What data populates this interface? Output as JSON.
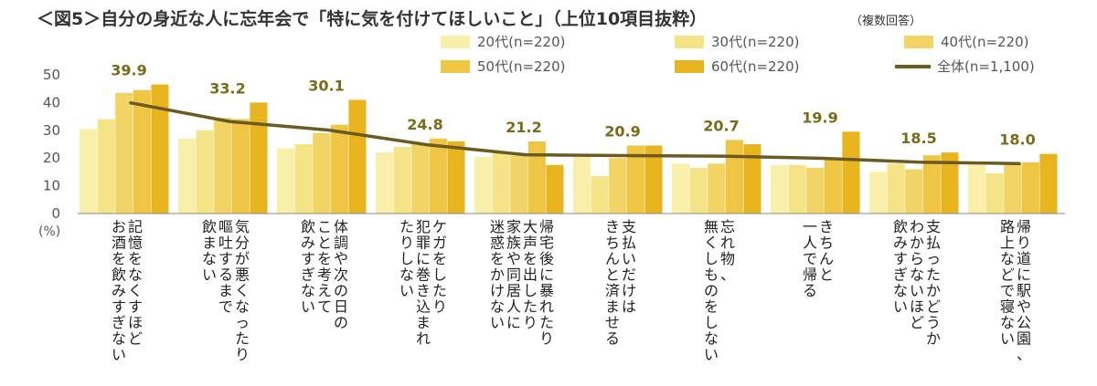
{
  "chart_data": {
    "type": "bar",
    "title": "＜図5＞自分の身近な人に忘年会で「特に気を付けてほしいこと」（上位10項目抜粋）",
    "subtitle": "（複数回答）",
    "ylabel": "(%)",
    "ylim": [
      0,
      50
    ],
    "yticks": [
      "0",
      "10",
      "20",
      "30",
      "40",
      "50"
    ],
    "grid": false,
    "legend_position": "top-right",
    "categories": [
      "記憶をなくすほどお酒を飲みすぎない",
      "気分が悪くなったり嘔吐するまで飲まない",
      "体調や次の日のことを考えて飲みすぎない",
      "ケガをしたり犯罪に巻き込まれたりしない",
      "帰宅後に暴れたり大声を出したり家族や同居人に迷惑をかけない",
      "支払いだけはきちんと済ませる",
      "忘れ物、無くしものをしない",
      "きちんと一人で帰る",
      "支払ったかどうかわからないほど飲みすぎない",
      "帰り道に駅や公園、路上などで寝ない"
    ],
    "category_lines": [
      [
        "記憶をなくすほど",
        "お酒を飲みすぎない"
      ],
      [
        "気分が悪くなったり",
        "嘔吐するまで",
        "飲まない"
      ],
      [
        "体調や次の日の",
        "ことを考えて",
        "飲みすぎない"
      ],
      [
        "ケガをしたり",
        "犯罪に巻き込まれ",
        "たりしない"
      ],
      [
        "帰宅後に暴れたり",
        "大声を出したり",
        "家族や同居人に",
        "迷惑をかけない"
      ],
      [
        "支払いだけは",
        "きちんと済ませる"
      ],
      [
        "忘れ物、",
        "無くしものをしない"
      ],
      [
        "きちんと",
        "一人で帰る"
      ],
      [
        "支払ったかどうか",
        "わからないほど",
        "飲みすぎない"
      ],
      [
        "帰り道に駅や公園、",
        "路上などで寝ない"
      ]
    ],
    "series": [
      {
        "name": "20代(n=220)",
        "color": "#f7efaa",
        "values": [
          30.5,
          27.0,
          23.5,
          22.0,
          20.5,
          21.0,
          18.0,
          17.5,
          15.0,
          17.5
        ]
      },
      {
        "name": "30代(n=220)",
        "color": "#f5e486",
        "values": [
          34.0,
          30.0,
          25.0,
          24.0,
          22.0,
          13.5,
          16.5,
          17.5,
          18.0,
          14.5
        ]
      },
      {
        "name": "40代(n=220)",
        "color": "#f1d463",
        "values": [
          43.5,
          34.5,
          29.0,
          25.0,
          21.0,
          20.0,
          18.0,
          16.5,
          16.0,
          18.0
        ]
      },
      {
        "name": "50代(n=220)",
        "color": "#eec644",
        "values": [
          44.5,
          34.0,
          32.0,
          27.0,
          26.0,
          24.5,
          26.5,
          19.5,
          21.0,
          18.5
        ]
      },
      {
        "name": "60代(n=220)",
        "color": "#e9b51f",
        "values": [
          46.5,
          40.0,
          41.0,
          26.0,
          17.5,
          24.5,
          25.0,
          29.5,
          22.0,
          21.5
        ]
      }
    ],
    "total": {
      "name": "全体(n=1,100)",
      "color": "#6b5a21",
      "values": [
        39.9,
        33.2,
        30.1,
        24.8,
        21.2,
        20.9,
        20.7,
        19.9,
        18.5,
        18.0
      ],
      "labels": [
        "39.9",
        "33.2",
        "30.1",
        "24.8",
        "21.2",
        "20.9",
        "20.7",
        "19.9",
        "18.5",
        "18.0"
      ]
    }
  }
}
